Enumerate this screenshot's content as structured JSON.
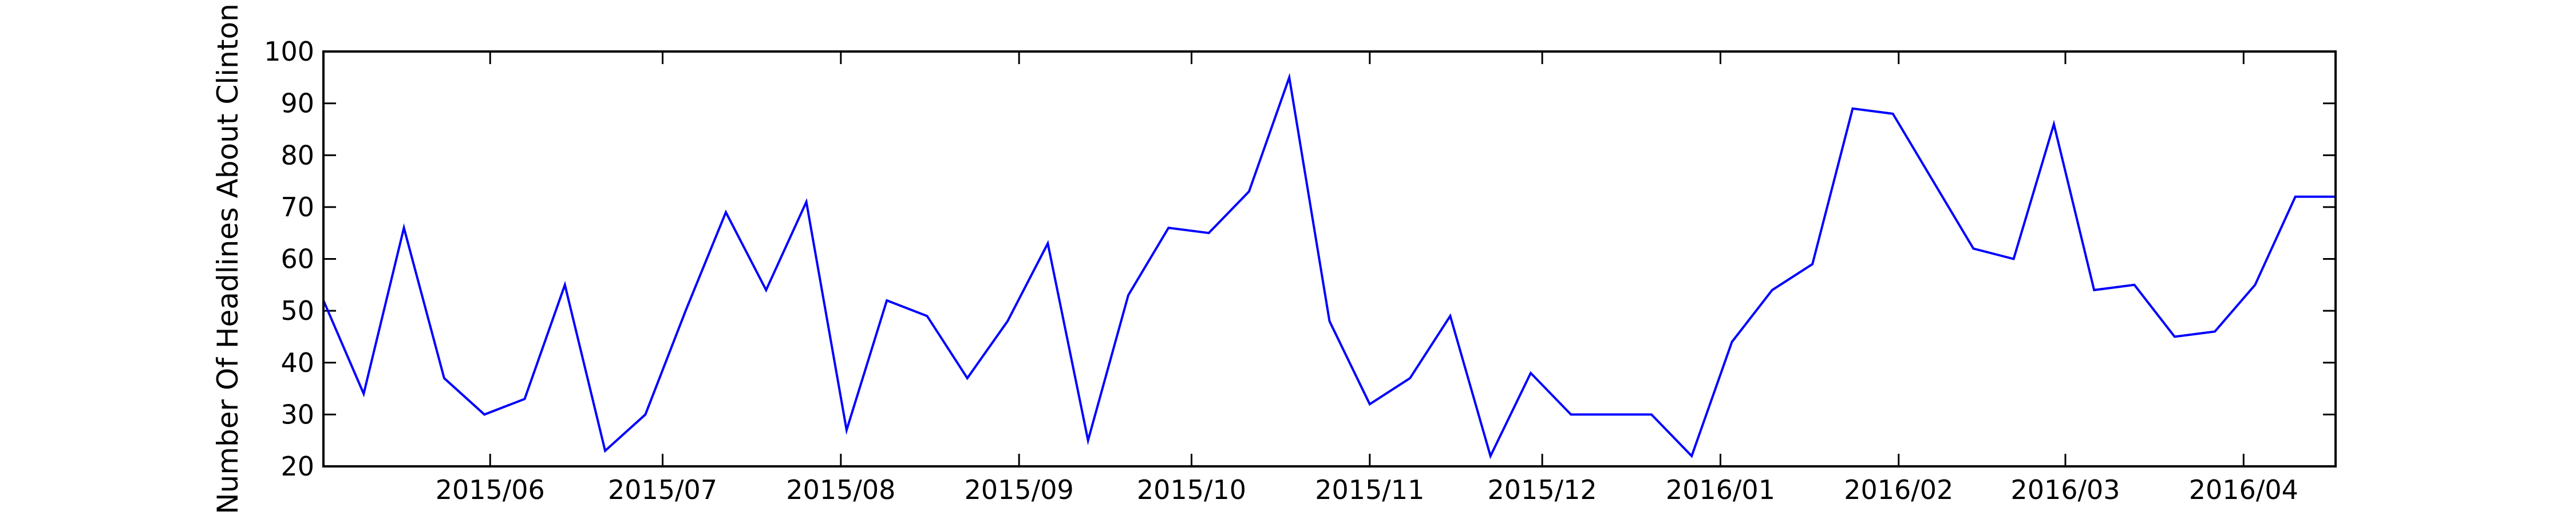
{
  "chart_data": {
    "type": "line",
    "title": "",
    "xlabel": "",
    "ylabel": "Number Of Headlines About Clinton",
    "ylim": [
      20,
      100
    ],
    "xlim": [
      "2015-05-03",
      "2016-04-17"
    ],
    "yticks": [
      20,
      30,
      40,
      50,
      60,
      70,
      80,
      90,
      100
    ],
    "xticks": [
      {
        "label": "2015/06",
        "date": "2015-06-01"
      },
      {
        "label": "2015/07",
        "date": "2015-07-01"
      },
      {
        "label": "2015/08",
        "date": "2015-08-01"
      },
      {
        "label": "2015/09",
        "date": "2015-09-01"
      },
      {
        "label": "2015/10",
        "date": "2015-10-01"
      },
      {
        "label": "2015/11",
        "date": "2015-11-01"
      },
      {
        "label": "2015/12",
        "date": "2015-12-01"
      },
      {
        "label": "2016/01",
        "date": "2016-01-01"
      },
      {
        "label": "2016/02",
        "date": "2016-02-01"
      },
      {
        "label": "2016/03",
        "date": "2016-03-01"
      },
      {
        "label": "2016/04",
        "date": "2016-04-01"
      }
    ],
    "grid": false,
    "legend": "none",
    "series": [
      {
        "color": "#0000ff",
        "x": [
          "2015-05-03",
          "2015-05-10",
          "2015-05-17",
          "2015-05-24",
          "2015-05-31",
          "2015-06-07",
          "2015-06-14",
          "2015-06-21",
          "2015-06-28",
          "2015-07-05",
          "2015-07-12",
          "2015-07-19",
          "2015-07-26",
          "2015-08-02",
          "2015-08-09",
          "2015-08-16",
          "2015-08-23",
          "2015-08-30",
          "2015-09-06",
          "2015-09-13",
          "2015-09-20",
          "2015-09-27",
          "2015-10-04",
          "2015-10-11",
          "2015-10-18",
          "2015-10-25",
          "2015-11-01",
          "2015-11-08",
          "2015-11-15",
          "2015-11-22",
          "2015-11-29",
          "2015-12-06",
          "2015-12-13",
          "2015-12-20",
          "2015-12-27",
          "2016-01-03",
          "2016-01-10",
          "2016-01-17",
          "2016-01-24",
          "2016-01-31",
          "2016-02-07",
          "2016-02-14",
          "2016-02-21",
          "2016-02-28",
          "2016-03-06",
          "2016-03-13",
          "2016-03-20",
          "2016-03-27",
          "2016-04-03",
          "2016-04-10",
          "2016-04-17"
        ],
        "y": [
          52,
          34,
          66,
          37,
          30,
          33,
          55,
          23,
          30,
          50,
          69,
          54,
          71,
          27,
          52,
          49,
          37,
          48,
          63,
          25,
          53,
          66,
          65,
          73,
          95,
          48,
          32,
          37,
          49,
          22,
          38,
          30,
          30,
          30,
          22,
          44,
          54,
          59,
          89,
          88,
          75,
          62,
          60,
          86,
          54,
          55,
          45,
          46,
          55,
          72,
          72
        ]
      }
    ]
  }
}
